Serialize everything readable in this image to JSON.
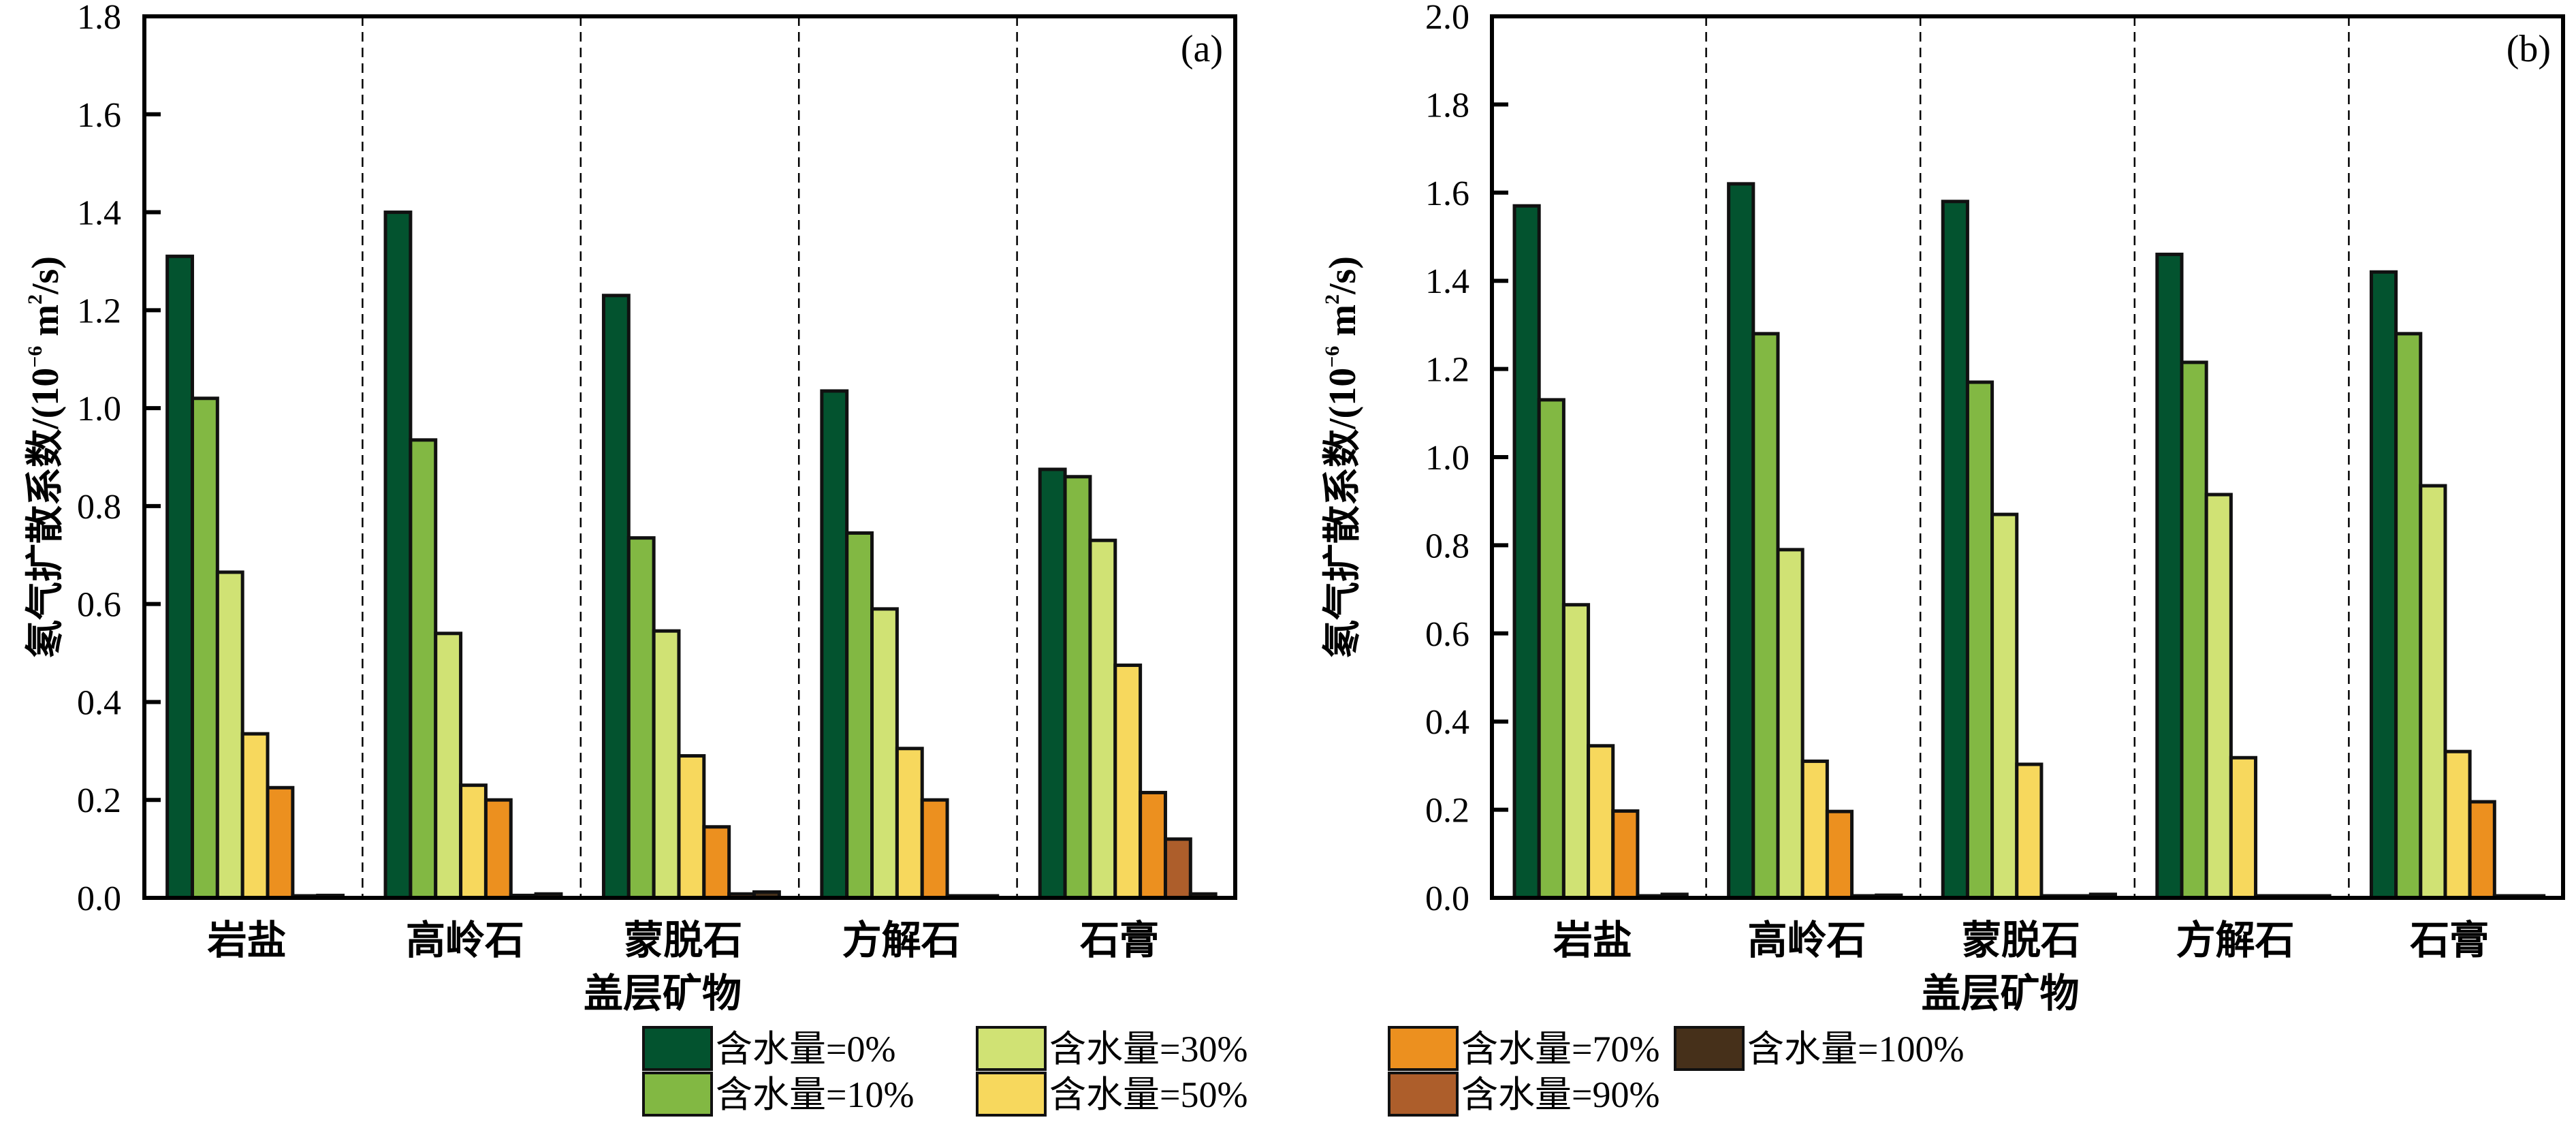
{
  "chart_data": [
    {
      "type": "bar",
      "panel_label": "(a)",
      "title": "",
      "xlabel": "盖层矿物",
      "ylabel": "氡气扩散系数/(10⁻⁶ m²/s)",
      "ylabel_parts": {
        "main": "氡气扩散系数/(10",
        "exp": "−6",
        "mid": " m",
        "sq": "2",
        "end": "/s)"
      },
      "ylim": [
        0,
        1.8
      ],
      "yticks": [
        "0.0",
        "0.2",
        "0.4",
        "0.6",
        "0.8",
        "1.0",
        "1.2",
        "1.4",
        "1.6",
        "1.8"
      ],
      "ytick_values": [
        0,
        0.2,
        0.4,
        0.6,
        0.8,
        1.0,
        1.2,
        1.4,
        1.6,
        1.8
      ],
      "grid": false,
      "group_separators": "dashed",
      "categories": [
        "岩盐",
        "高岭石",
        "蒙脱石",
        "方解石",
        "石膏"
      ],
      "series": [
        {
          "name": "含水量=0%",
          "values": [
            1.31,
            1.4,
            1.23,
            1.035,
            0.875
          ]
        },
        {
          "name": "含水量=10%",
          "values": [
            1.02,
            0.935,
            0.735,
            0.745,
            0.86
          ]
        },
        {
          "name": "含水量=30%",
          "values": [
            0.665,
            0.54,
            0.545,
            0.59,
            0.73
          ]
        },
        {
          "name": "含水量=50%",
          "values": [
            0.335,
            0.23,
            0.29,
            0.305,
            0.475
          ]
        },
        {
          "name": "含水量=70%",
          "values": [
            0.225,
            0.2,
            0.145,
            0.2,
            0.215
          ]
        },
        {
          "name": "含水量=90%",
          "values": [
            0.003,
            0.005,
            0.008,
            0.003,
            0.12
          ]
        },
        {
          "name": "含水量=100%",
          "values": [
            0.005,
            0.008,
            0.012,
            0.003,
            0.008
          ]
        }
      ]
    },
    {
      "type": "bar",
      "panel_label": "(b)",
      "title": "",
      "xlabel": "盖层矿物",
      "ylabel": "氡气扩散系数/(10⁻⁶ m²/s)",
      "ylabel_parts": {
        "main": "氡气扩散系数/(10",
        "exp": "−6",
        "mid": " m",
        "sq": "2",
        "end": "/s)"
      },
      "ylim": [
        0,
        2.0
      ],
      "yticks": [
        "0.0",
        "0.2",
        "0.4",
        "0.6",
        "0.8",
        "1.0",
        "1.2",
        "1.4",
        "1.6",
        "1.8",
        "2.0"
      ],
      "ytick_values": [
        0,
        0.2,
        0.4,
        0.6,
        0.8,
        1.0,
        1.2,
        1.4,
        1.6,
        1.8,
        2.0
      ],
      "grid": false,
      "group_separators": "dashed",
      "categories": [
        "岩盐",
        "高岭石",
        "蒙脱石",
        "方解石",
        "石膏"
      ],
      "series": [
        {
          "name": "含水量=0%",
          "values": [
            1.57,
            1.62,
            1.58,
            1.46,
            1.42
          ]
        },
        {
          "name": "含水量=10%",
          "values": [
            1.13,
            1.28,
            1.17,
            1.215,
            1.28
          ]
        },
        {
          "name": "含水量=30%",
          "values": [
            0.665,
            0.79,
            0.87,
            0.915,
            0.935
          ]
        },
        {
          "name": "含水量=50%",
          "values": [
            0.345,
            0.31,
            0.303,
            0.318,
            0.332
          ]
        },
        {
          "name": "含水量=70%",
          "values": [
            0.197,
            0.196,
            0.002,
            0.002,
            0.218
          ]
        },
        {
          "name": "含水量=90%",
          "values": [
            0.002,
            0.002,
            0.002,
            0.002,
            0.002
          ]
        },
        {
          "name": "含水量=100%",
          "values": [
            0.008,
            0.006,
            0.008,
            0.004,
            0.004
          ]
        }
      ]
    }
  ],
  "legend": {
    "placement": "bottom-center",
    "items": [
      {
        "label": "含水量=0%",
        "color": "#03532f"
      },
      {
        "label": "含水量=10%",
        "color": "#82b843"
      },
      {
        "label": "含水量=30%",
        "color": "#d0e274"
      },
      {
        "label": "含水量=50%",
        "color": "#f7d85d"
      },
      {
        "label": "含水量=70%",
        "color": "#ec901f"
      },
      {
        "label": "含水量=90%",
        "color": "#ad5e2b"
      },
      {
        "label": "含水量=100%",
        "color": "#46301a"
      }
    ]
  }
}
